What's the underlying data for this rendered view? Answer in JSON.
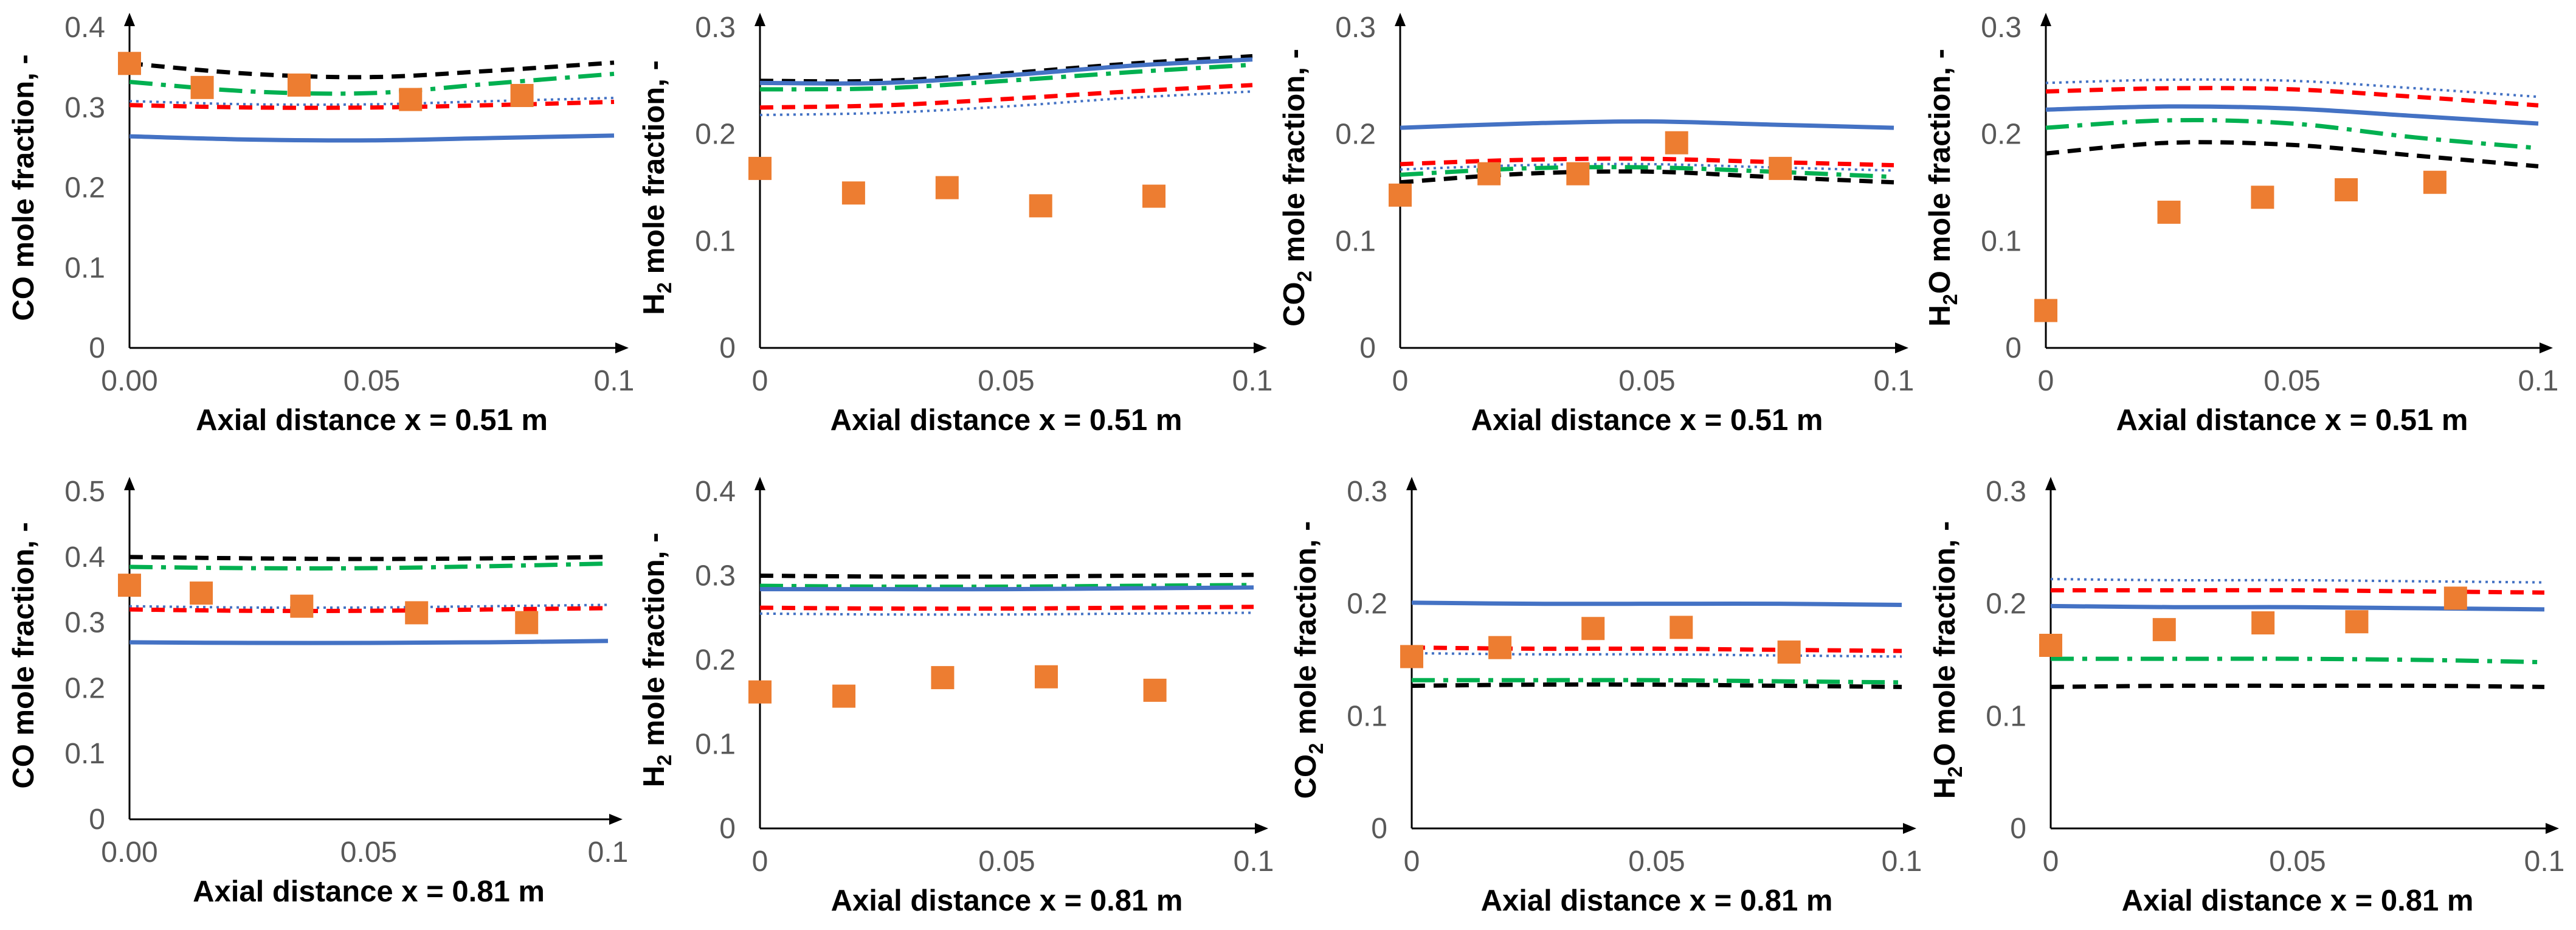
{
  "figure": {
    "colors": {
      "series_blue_solid": "#4472C4",
      "series_red_dashed": "#FF0000",
      "series_green_dashdot": "#00B050",
      "series_black_dashed": "#000000",
      "series_blue_dotted": "#4472C4",
      "experiment_markers": "#ED7D31",
      "tick_text": "#595959",
      "axis": "#000000"
    }
  },
  "chart_data": [
    {
      "type": "line",
      "species": "CO",
      "ylabel_parts": [
        "CO mole fraction, -"
      ],
      "xlabel": "Axial distance x = 0.51 m",
      "xlim": [
        0,
        0.1
      ],
      "ylim": [
        0,
        0.4
      ],
      "x_ticks": [
        0,
        0.05,
        0.1
      ],
      "x_tick_labels": [
        "0.00",
        "0.05",
        "0.1"
      ],
      "y_ticks": [
        0,
        0.1,
        0.2,
        0.3,
        0.4
      ],
      "y_tick_labels": [
        "0",
        "0.1",
        "0.2",
        "0.3",
        "0.4"
      ],
      "x": [
        0,
        0.025,
        0.05,
        0.075,
        0.1
      ],
      "series": [
        {
          "name": "black dashed",
          "style": "dash",
          "color": "#000000",
          "values": [
            0.355,
            0.342,
            0.338,
            0.346,
            0.356
          ]
        },
        {
          "name": "green dash-dot",
          "style": "dashdot",
          "color": "#00B050",
          "values": [
            0.332,
            0.32,
            0.318,
            0.33,
            0.342
          ]
        },
        {
          "name": "blue dotted",
          "style": "dot",
          "color": "#4472C4",
          "values": [
            0.308,
            0.304,
            0.304,
            0.308,
            0.312
          ]
        },
        {
          "name": "red dashed",
          "style": "dash",
          "color": "#FF0000",
          "values": [
            0.303,
            0.3,
            0.3,
            0.303,
            0.307
          ]
        },
        {
          "name": "blue solid",
          "style": "solid",
          "color": "#4472C4",
          "values": [
            0.264,
            0.26,
            0.259,
            0.262,
            0.265
          ]
        }
      ],
      "experiment": {
        "x": [
          0.0,
          0.015,
          0.035,
          0.058,
          0.081
        ],
        "y": [
          0.355,
          0.325,
          0.328,
          0.31,
          0.315
        ]
      }
    },
    {
      "type": "line",
      "species": "H2",
      "ylabel_parts": [
        "H",
        "2",
        " mole fraction, -"
      ],
      "xlabel": "Axial distance x = 0.51 m",
      "xlim": [
        0,
        0.1
      ],
      "ylim": [
        0,
        0.3
      ],
      "x_ticks": [
        0,
        0.05,
        0.1
      ],
      "x_tick_labels": [
        "0",
        "0.05",
        "0.1"
      ],
      "y_ticks": [
        0,
        0.1,
        0.2,
        0.3
      ],
      "y_tick_labels": [
        "0",
        "0.1",
        "0.2",
        "0.3"
      ],
      "x": [
        0,
        0.025,
        0.05,
        0.075,
        0.1
      ],
      "series": [
        {
          "name": "black dashed",
          "style": "dash",
          "color": "#000000",
          "values": [
            0.25,
            0.25,
            0.257,
            0.266,
            0.273
          ]
        },
        {
          "name": "blue solid",
          "style": "solid",
          "color": "#4472C4",
          "values": [
            0.248,
            0.248,
            0.255,
            0.264,
            0.27
          ]
        },
        {
          "name": "green dash-dot",
          "style": "dashdot",
          "color": "#00B050",
          "values": [
            0.242,
            0.243,
            0.25,
            0.258,
            0.265
          ]
        },
        {
          "name": "red dashed",
          "style": "dash",
          "color": "#FF0000",
          "values": [
            0.225,
            0.227,
            0.233,
            0.24,
            0.246
          ]
        },
        {
          "name": "blue dotted",
          "style": "dot",
          "color": "#4472C4",
          "values": [
            0.218,
            0.22,
            0.226,
            0.234,
            0.24
          ]
        }
      ],
      "experiment": {
        "x": [
          0.0,
          0.019,
          0.038,
          0.057,
          0.08
        ],
        "y": [
          0.168,
          0.145,
          0.15,
          0.133,
          0.142
        ]
      }
    },
    {
      "type": "line",
      "species": "CO2",
      "ylabel_parts": [
        "CO",
        "2",
        " mole fraction, -"
      ],
      "xlabel": "Axial distance x = 0.51 m",
      "xlim": [
        0,
        0.1
      ],
      "ylim": [
        0,
        0.3
      ],
      "x_ticks": [
        0,
        0.05,
        0.1
      ],
      "x_tick_labels": [
        "0",
        "0.05",
        "0.1"
      ],
      "y_ticks": [
        0,
        0.1,
        0.2,
        0.3
      ],
      "y_tick_labels": [
        "0",
        "0.1",
        "0.2",
        "0.3"
      ],
      "x": [
        0,
        0.025,
        0.05,
        0.075,
        0.1
      ],
      "series": [
        {
          "name": "blue solid",
          "style": "solid",
          "color": "#4472C4",
          "values": [
            0.206,
            0.21,
            0.212,
            0.209,
            0.206
          ]
        },
        {
          "name": "red dashed",
          "style": "dash",
          "color": "#FF0000",
          "values": [
            0.172,
            0.176,
            0.177,
            0.174,
            0.171
          ]
        },
        {
          "name": "blue dotted",
          "style": "dot",
          "color": "#4472C4",
          "values": [
            0.167,
            0.171,
            0.172,
            0.169,
            0.166
          ]
        },
        {
          "name": "green dash-dot",
          "style": "dashdot",
          "color": "#00B050",
          "values": [
            0.162,
            0.168,
            0.169,
            0.165,
            0.16
          ]
        },
        {
          "name": "black dashed",
          "style": "dash",
          "color": "#000000",
          "values": [
            0.155,
            0.163,
            0.165,
            0.16,
            0.155
          ]
        }
      ],
      "experiment": {
        "x": [
          0.0,
          0.018,
          0.036,
          0.056,
          0.077
        ],
        "y": [
          0.143,
          0.163,
          0.163,
          0.192,
          0.168
        ]
      }
    },
    {
      "type": "line",
      "species": "H2O",
      "ylabel_parts": [
        "H",
        "2",
        "O mole fraction, -"
      ],
      "xlabel": "Axial distance x = 0.51 m",
      "xlim": [
        0,
        0.1
      ],
      "ylim": [
        0,
        0.3
      ],
      "x_ticks": [
        0,
        0.05,
        0.1
      ],
      "x_tick_labels": [
        "0",
        "0.05",
        "0.1"
      ],
      "y_ticks": [
        0,
        0.1,
        0.2,
        0.3
      ],
      "y_tick_labels": [
        "0",
        "0.1",
        "0.2",
        "0.3"
      ],
      "x": [
        0,
        0.025,
        0.05,
        0.075,
        0.1
      ],
      "series": [
        {
          "name": "blue dotted",
          "style": "dot",
          "color": "#4472C4",
          "values": [
            0.248,
            0.251,
            0.25,
            0.243,
            0.235
          ]
        },
        {
          "name": "red dashed",
          "style": "dash",
          "color": "#FF0000",
          "values": [
            0.24,
            0.243,
            0.242,
            0.235,
            0.227
          ]
        },
        {
          "name": "blue solid",
          "style": "solid",
          "color": "#4472C4",
          "values": [
            0.223,
            0.226,
            0.224,
            0.217,
            0.21
          ]
        },
        {
          "name": "green dash-dot",
          "style": "dashdot",
          "color": "#00B050",
          "values": [
            0.206,
            0.213,
            0.21,
            0.197,
            0.187
          ]
        },
        {
          "name": "black dashed",
          "style": "dash",
          "color": "#000000",
          "values": [
            0.182,
            0.192,
            0.19,
            0.18,
            0.17
          ]
        }
      ],
      "experiment": {
        "x": [
          0.0,
          0.025,
          0.044,
          0.061,
          0.079
        ],
        "y": [
          0.035,
          0.127,
          0.141,
          0.148,
          0.155
        ]
      }
    },
    {
      "type": "line",
      "species": "CO",
      "ylabel_parts": [
        "CO mole fraction, -"
      ],
      "xlabel": "Axial distance x = 0.81 m",
      "xlim": [
        0,
        0.1
      ],
      "ylim": [
        0,
        0.5
      ],
      "x_ticks": [
        0,
        0.05,
        0.1
      ],
      "x_tick_labels": [
        "0.00",
        "0.05",
        "0.1"
      ],
      "y_ticks": [
        0,
        0.1,
        0.2,
        0.3,
        0.4,
        0.5
      ],
      "y_tick_labels": [
        "0",
        "0.1",
        "0.2",
        "0.3",
        "0.4",
        "0.5"
      ],
      "x": [
        0,
        0.025,
        0.05,
        0.075,
        0.1
      ],
      "series": [
        {
          "name": "black dashed",
          "style": "dash",
          "color": "#000000",
          "values": [
            0.4,
            0.398,
            0.397,
            0.398,
            0.4
          ]
        },
        {
          "name": "green dash-dot",
          "style": "dashdot",
          "color": "#00B050",
          "values": [
            0.385,
            0.383,
            0.383,
            0.386,
            0.39
          ]
        },
        {
          "name": "blue dotted",
          "style": "dot",
          "color": "#4472C4",
          "values": [
            0.325,
            0.323,
            0.323,
            0.325,
            0.327
          ]
        },
        {
          "name": "red dashed",
          "style": "dash",
          "color": "#FF0000",
          "values": [
            0.32,
            0.318,
            0.318,
            0.32,
            0.322
          ]
        },
        {
          "name": "blue solid",
          "style": "solid",
          "color": "#4472C4",
          "values": [
            0.27,
            0.269,
            0.269,
            0.27,
            0.272
          ]
        }
      ],
      "experiment": {
        "x": [
          0.0,
          0.015,
          0.036,
          0.06,
          0.083
        ],
        "y": [
          0.357,
          0.345,
          0.325,
          0.315,
          0.3
        ]
      }
    },
    {
      "type": "line",
      "species": "H2",
      "ylabel_parts": [
        "H",
        "2",
        " mole fraction, -"
      ],
      "xlabel": "Axial distance x = 0.81 m",
      "xlim": [
        0,
        0.1
      ],
      "ylim": [
        0,
        0.4
      ],
      "x_ticks": [
        0,
        0.05,
        0.1
      ],
      "x_tick_labels": [
        "0",
        "0.05",
        "0.1"
      ],
      "y_ticks": [
        0,
        0.1,
        0.2,
        0.3,
        0.4
      ],
      "y_tick_labels": [
        "0",
        "0.1",
        "0.2",
        "0.3",
        "0.4"
      ],
      "x": [
        0,
        0.025,
        0.05,
        0.075,
        0.1
      ],
      "series": [
        {
          "name": "black dashed",
          "style": "dash",
          "color": "#000000",
          "values": [
            0.3,
            0.299,
            0.299,
            0.3,
            0.301
          ]
        },
        {
          "name": "green dash-dot",
          "style": "dashdot",
          "color": "#00B050",
          "values": [
            0.288,
            0.287,
            0.287,
            0.288,
            0.289
          ]
        },
        {
          "name": "blue solid",
          "style": "solid",
          "color": "#4472C4",
          "values": [
            0.284,
            0.284,
            0.284,
            0.285,
            0.286
          ]
        },
        {
          "name": "red dashed",
          "style": "dash",
          "color": "#FF0000",
          "values": [
            0.262,
            0.261,
            0.261,
            0.262,
            0.263
          ]
        },
        {
          "name": "blue dotted",
          "style": "dot",
          "color": "#4472C4",
          "values": [
            0.255,
            0.254,
            0.254,
            0.255,
            0.256
          ]
        }
      ],
      "experiment": {
        "x": [
          0.0,
          0.017,
          0.037,
          0.058,
          0.08
        ],
        "y": [
          0.162,
          0.157,
          0.179,
          0.18,
          0.164
        ]
      }
    },
    {
      "type": "line",
      "species": "CO2",
      "ylabel_parts": [
        "CO",
        "2",
        " mole fraction, -"
      ],
      "xlabel": "Axial distance x = 0.81 m",
      "xlim": [
        0,
        0.1
      ],
      "ylim": [
        0,
        0.3
      ],
      "x_ticks": [
        0,
        0.05,
        0.1
      ],
      "x_tick_labels": [
        "0",
        "0.05",
        "0.1"
      ],
      "y_ticks": [
        0,
        0.1,
        0.2,
        0.3
      ],
      "y_tick_labels": [
        "0",
        "0.1",
        "0.2",
        "0.3"
      ],
      "x": [
        0,
        0.025,
        0.05,
        0.075,
        0.1
      ],
      "series": [
        {
          "name": "blue solid",
          "style": "solid",
          "color": "#4472C4",
          "values": [
            0.201,
            0.2,
            0.2,
            0.2,
            0.199
          ]
        },
        {
          "name": "red dashed",
          "style": "dash",
          "color": "#FF0000",
          "values": [
            0.161,
            0.16,
            0.16,
            0.159,
            0.158
          ]
        },
        {
          "name": "blue dotted",
          "style": "dot",
          "color": "#4472C4",
          "values": [
            0.156,
            0.155,
            0.155,
            0.154,
            0.153
          ]
        },
        {
          "name": "green dash-dot",
          "style": "dashdot",
          "color": "#00B050",
          "values": [
            0.132,
            0.132,
            0.132,
            0.131,
            0.13
          ]
        },
        {
          "name": "black dashed",
          "style": "dash",
          "color": "#000000",
          "values": [
            0.127,
            0.128,
            0.128,
            0.127,
            0.126
          ]
        }
      ],
      "experiment": {
        "x": [
          0.0,
          0.018,
          0.037,
          0.055,
          0.077
        ],
        "y": [
          0.153,
          0.161,
          0.178,
          0.179,
          0.157
        ]
      }
    },
    {
      "type": "line",
      "species": "H2O",
      "ylabel_parts": [
        "H",
        "2",
        "O mole fraction, -"
      ],
      "xlabel": "Axial distance x = 0.81 m",
      "xlim": [
        0,
        0.1
      ],
      "ylim": [
        0,
        0.3
      ],
      "x_ticks": [
        0,
        0.05,
        0.1
      ],
      "x_tick_labels": [
        "0",
        "0.05",
        "0.1"
      ],
      "y_ticks": [
        0,
        0.1,
        0.2,
        0.3
      ],
      "y_tick_labels": [
        "0",
        "0.1",
        "0.2",
        "0.3"
      ],
      "x": [
        0,
        0.025,
        0.05,
        0.075,
        0.1
      ],
      "series": [
        {
          "name": "blue dotted",
          "style": "dot",
          "color": "#4472C4",
          "values": [
            0.222,
            0.221,
            0.221,
            0.22,
            0.219
          ]
        },
        {
          "name": "red dashed",
          "style": "dash",
          "color": "#FF0000",
          "values": [
            0.212,
            0.212,
            0.212,
            0.211,
            0.21
          ]
        },
        {
          "name": "blue solid",
          "style": "solid",
          "color": "#4472C4",
          "values": [
            0.198,
            0.197,
            0.197,
            0.196,
            0.195
          ]
        },
        {
          "name": "green dash-dot",
          "style": "dashdot",
          "color": "#00B050",
          "values": [
            0.151,
            0.151,
            0.151,
            0.15,
            0.148
          ]
        },
        {
          "name": "black dashed",
          "style": "dash",
          "color": "#000000",
          "values": [
            0.126,
            0.127,
            0.127,
            0.127,
            0.126
          ]
        }
      ],
      "experiment": {
        "x": [
          0.0,
          0.023,
          0.043,
          0.062,
          0.082
        ],
        "y": [
          0.163,
          0.177,
          0.183,
          0.184,
          0.205
        ]
      }
    }
  ]
}
